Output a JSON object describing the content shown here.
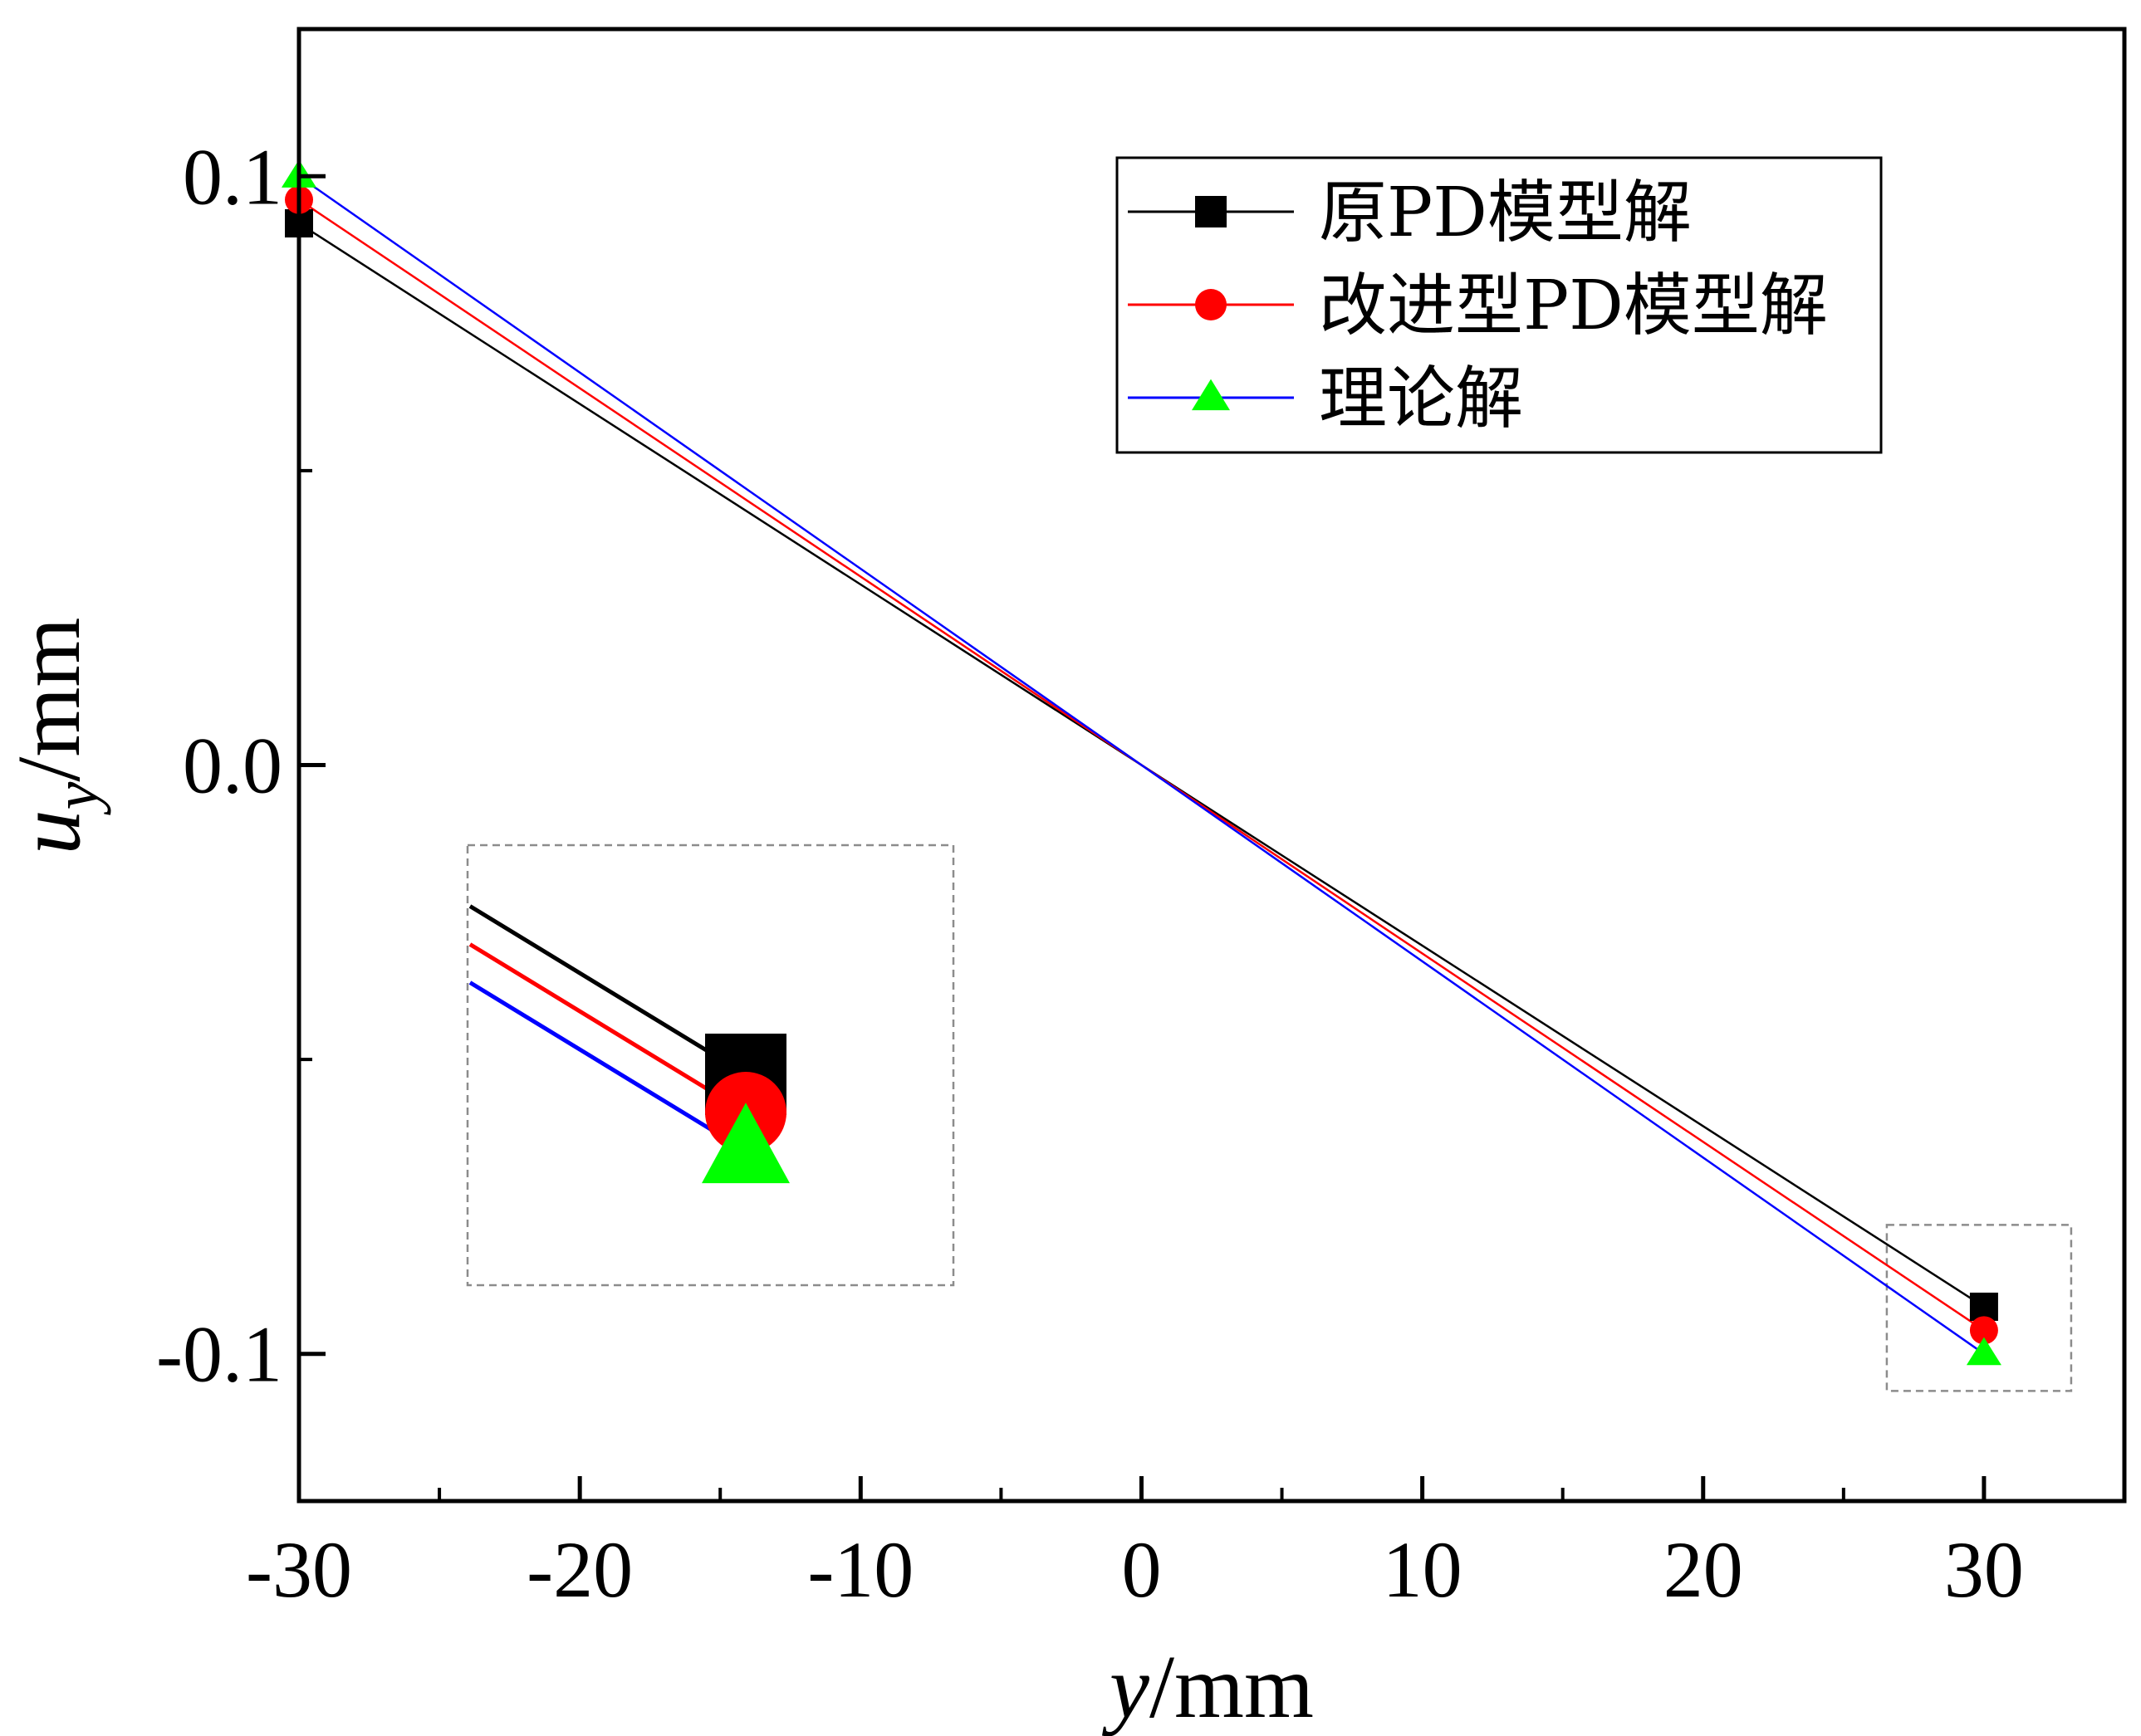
{
  "chart_data": {
    "type": "line",
    "xlabel": {
      "var": "y",
      "unit": "/mm"
    },
    "ylabel": {
      "var": "u",
      "sub": "y",
      "unit": "/mm"
    },
    "xlim": [
      -30,
      35
    ],
    "ylim": [
      -0.125,
      0.125
    ],
    "xticks": [
      -30,
      -20,
      -10,
      0,
      10,
      20,
      30
    ],
    "xtick_labels": [
      "-30",
      "-20",
      "-10",
      "0",
      "10",
      "20",
      "30"
    ],
    "yticks": [
      -0.1,
      0.0,
      0.1
    ],
    "ytick_labels": [
      "-0.1",
      "0.0",
      "0.1"
    ],
    "grid": false,
    "legend_position": "top-right",
    "x": [
      -30,
      30
    ],
    "series": [
      {
        "name": "原PD模型解",
        "values": [
          0.092,
          -0.092
        ],
        "color": "#000000",
        "marker": "square",
        "marker_color": "#000000"
      },
      {
        "name": "改进型PD模型解",
        "values": [
          0.096,
          -0.096
        ],
        "color": "#ff0000",
        "marker": "circle",
        "marker_color": "#ff0000"
      },
      {
        "name": "理论解",
        "values": [
          0.1,
          -0.1
        ],
        "color": "#0000ff",
        "marker": "triangle",
        "marker_color": "#00ff00"
      }
    ],
    "inset": {
      "type": "zoom",
      "target_x": 30,
      "target_y": -0.096
    }
  }
}
